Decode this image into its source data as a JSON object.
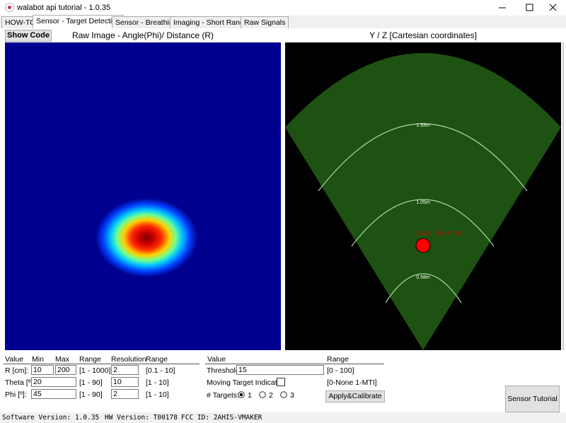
{
  "window": {
    "title": "walabot api tutorial - 1.0.35"
  },
  "tabs": [
    "HOW-TO",
    "Sensor - Target Detection",
    "Sensor - Breathing",
    "Imaging - Short Range",
    "Raw Signals"
  ],
  "toolbar": {
    "show_code": "Show Code",
    "raw_image_title": "Raw Image - Angle(Phi)/ Distance (R)",
    "cartesian_title": "Y / Z [Cartesian coordinates]"
  },
  "plot": {
    "arc_labels": [
      "1.53m",
      "1.05m",
      "0.58m"
    ],
    "target_label": "[13.95, -0.66, 74.73]"
  },
  "arena": {
    "headers": [
      "Value",
      "Min",
      "Max",
      "Range",
      "Resolution",
      "Range"
    ],
    "rows": [
      {
        "label": "R [cm]:",
        "min": "10",
        "max": "200",
        "range": "[1 - 1000]",
        "resolution": "2",
        "resolution_range": "[0.1 - 10]"
      },
      {
        "label": "Theta [º]:",
        "min": "20",
        "range": "[1 - 90]",
        "resolution": "10",
        "resolution_range": "[1 - 10]"
      },
      {
        "label": "Phi [º]:",
        "min": "45",
        "range": "[1 - 90]",
        "resolution": "2",
        "resolution_range": "[1 - 10]"
      }
    ]
  },
  "params": {
    "headers": [
      "Value",
      "Range"
    ],
    "threshold": {
      "label": "Threshold:",
      "value": "15",
      "range": "[0 - 100]"
    },
    "mti": {
      "label": "Moving Target Indicator:",
      "range": "[0-None 1-MTI]"
    },
    "targets": {
      "label": "# Targets:",
      "options": [
        "1",
        "2",
        "3"
      ]
    },
    "apply": "Apply&Calibrate"
  },
  "sensor_tutorial": "Sensor Tutorial",
  "status": {
    "software": "Software Version: 1.0.35",
    "hw": "HW Version: T00178",
    "fcc": "FCC ID: 2AHIS-VMAKER"
  }
}
